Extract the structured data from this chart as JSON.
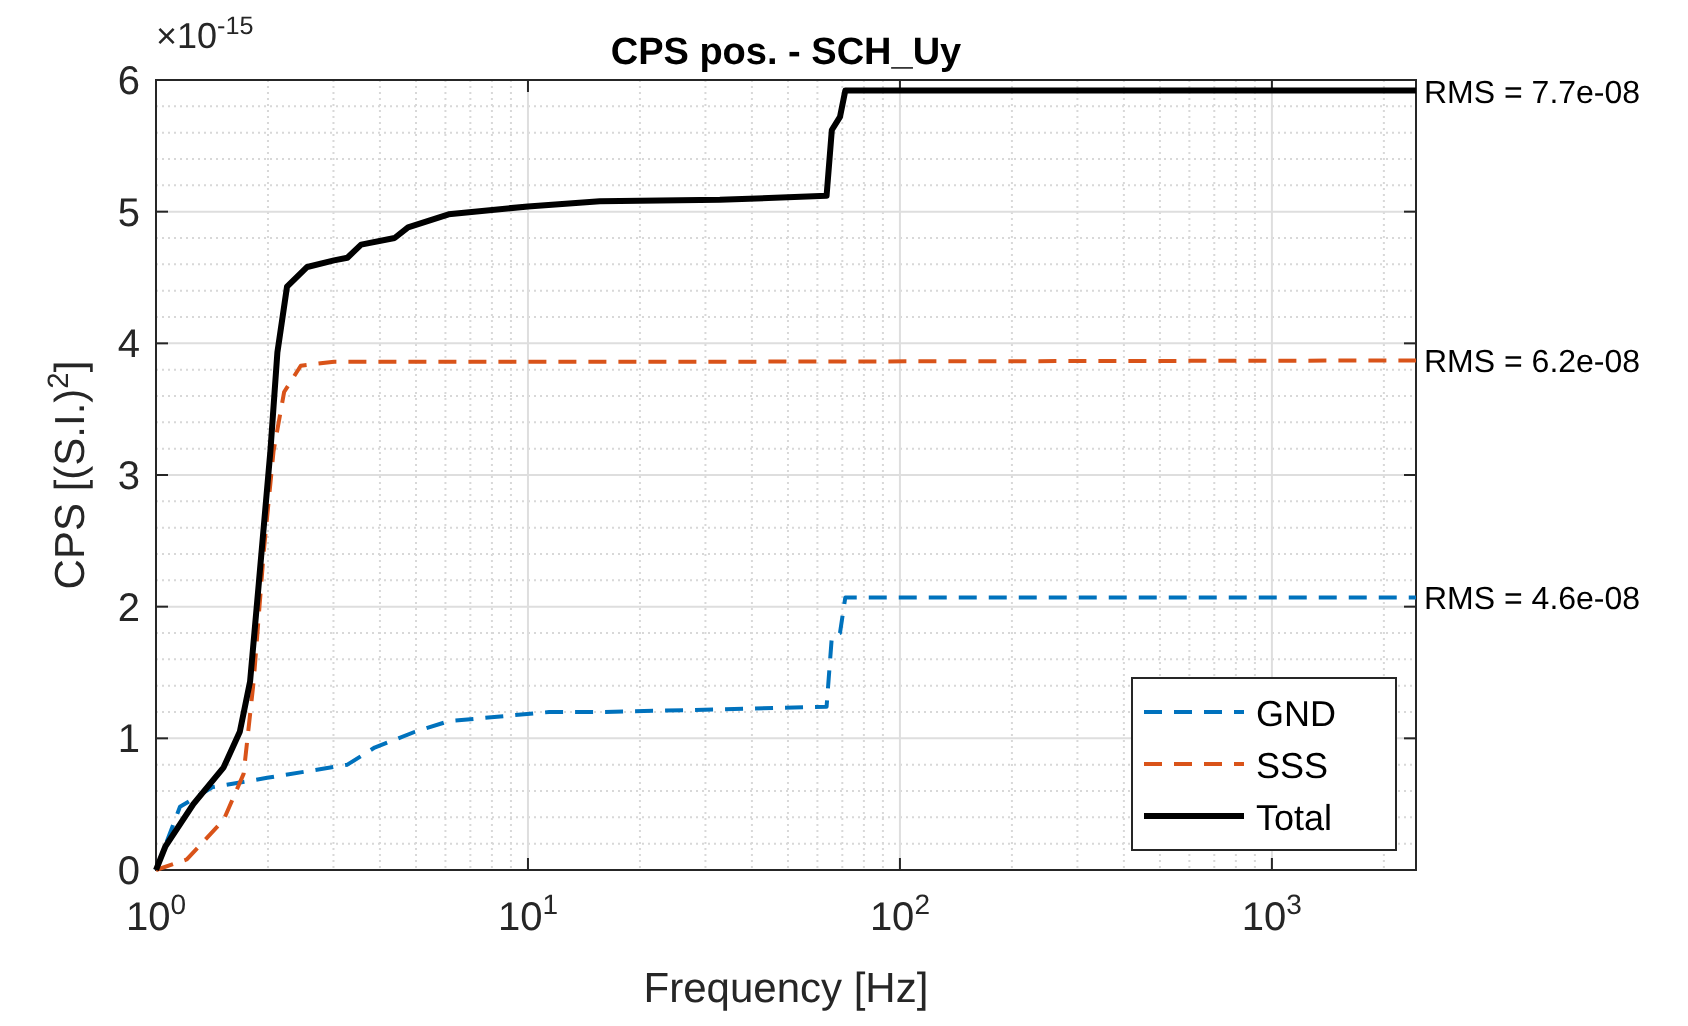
{
  "chart_data": {
    "type": "line",
    "title": "CPS pos. - SCH_Uy",
    "xlabel": "Frequency [Hz]",
    "ylabel": "CPS [(S.I.)$^{2}$]",
    "log": "x",
    "grid": true,
    "legend": "bottom right",
    "xlim": [
      1,
      2440
    ],
    "xticks": [
      {
        "value": 1,
        "label": "10$^{0}$"
      },
      {
        "value": 10,
        "label": "10$^{1}$"
      },
      {
        "value": 100,
        "label": "10$^{2}$"
      },
      {
        "value": 1000,
        "label": "10$^{3}$"
      }
    ],
    "ylim": [
      0,
      6
    ],
    "yticks": [
      0,
      1,
      2,
      3,
      4,
      5,
      6
    ],
    "annotations": [
      "×10$^{-15}$",
      "RMS = 7.7e-08",
      "RMS = 6.2e-08",
      "RMS = 4.6e-08"
    ],
    "series": [
      {
        "name": "GND",
        "color": "#0072bd",
        "line_style": "dashed",
        "x": [
          1,
          1.16,
          1.42,
          1.99,
          3.27,
          3.87,
          4.97,
          6.12,
          11.4,
          15.6,
          32.8,
          63.5,
          65.6,
          69,
          71.3,
          2440
        ],
        "values": [
          0,
          0.48,
          0.63,
          0.7,
          0.8,
          0.93,
          1.05,
          1.13,
          1.2,
          1.2,
          1.22,
          1.24,
          1.77,
          1.8,
          2.07,
          2.07
        ]
      },
      {
        "name": "SSS",
        "color": "#d95319",
        "line_style": "dashed",
        "x": [
          1,
          1.21,
          1.52,
          1.72,
          1.83,
          1.95,
          2.07,
          2.21,
          2.45,
          3.01,
          26,
          2440
        ],
        "values": [
          0,
          0.08,
          0.38,
          0.73,
          1.43,
          2.43,
          3.18,
          3.63,
          3.83,
          3.86,
          3.86,
          3.87
        ]
      },
      {
        "name": "Total",
        "color": "#000000",
        "line_style": "solid",
        "x": [
          1,
          1.06,
          1.26,
          1.52,
          1.68,
          1.79,
          1.89,
          2.03,
          2.12,
          2.25,
          2.55,
          3.01,
          3.27,
          3.56,
          4.38,
          4.76,
          6.12,
          10,
          15.6,
          32.8,
          63.5,
          65.6,
          69,
          71.3,
          2440
        ],
        "values": [
          0,
          0.18,
          0.5,
          0.78,
          1.05,
          1.43,
          2.18,
          3.18,
          3.93,
          4.43,
          4.58,
          4.63,
          4.65,
          4.75,
          4.8,
          4.88,
          4.98,
          5.04,
          5.08,
          5.09,
          5.12,
          5.62,
          5.72,
          5.92,
          5.92
        ]
      }
    ]
  }
}
